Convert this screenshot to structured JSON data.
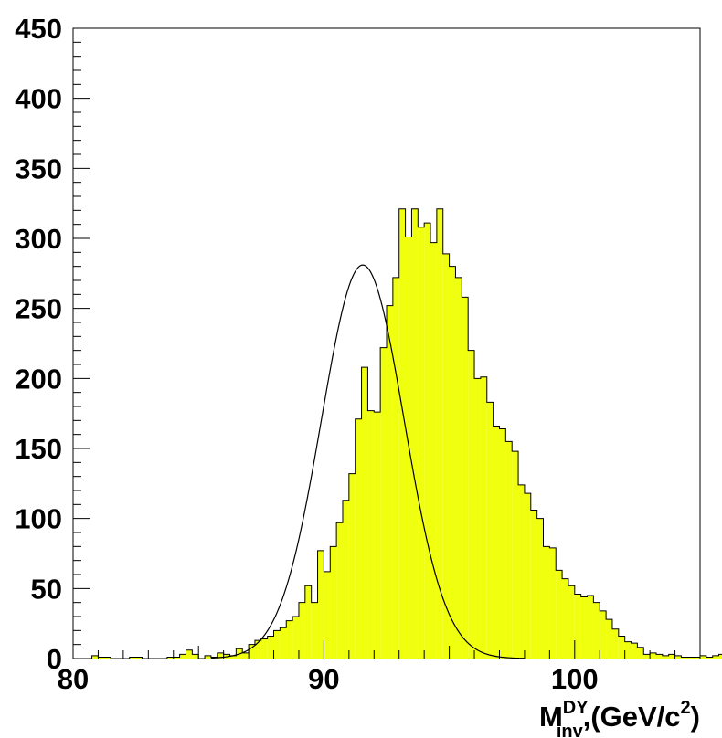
{
  "chart_data": {
    "type": "histogram",
    "title": "",
    "xlabel_main": "M",
    "xlabel_sup": "DY",
    "xlabel_sub": "inv",
    "xlabel_rest": ",(GeV/c",
    "xlabel_sup2": "2",
    "xlabel_close": ")",
    "ylabel": "",
    "xlim": [
      80,
      105
    ],
    "ylim": [
      0,
      450
    ],
    "grid": false,
    "fill_color": "#f0ff0e",
    "x_ticks": [
      80,
      90,
      100
    ],
    "y_ticks": [
      0,
      50,
      100,
      150,
      200,
      250,
      300,
      350,
      400,
      450
    ],
    "bin_width": 0.25,
    "x_start": 80,
    "values": [
      0,
      0,
      0,
      2,
      1,
      1,
      0,
      0,
      0,
      1,
      1,
      0,
      0,
      0,
      0,
      1,
      1,
      3,
      6,
      3,
      0,
      2,
      1,
      4,
      3,
      2,
      7,
      4,
      10,
      13,
      14,
      16,
      20,
      22,
      27,
      30,
      40,
      52,
      40,
      77,
      62,
      80,
      97,
      113,
      132,
      171,
      208,
      177,
      176,
      222,
      252,
      272,
      321,
      301,
      321,
      308,
      311,
      297,
      321,
      289,
      280,
      272,
      258,
      220,
      200,
      201,
      183,
      166,
      164,
      155,
      148,
      124,
      118,
      106,
      100,
      80,
      79,
      63,
      57,
      52,
      46,
      44,
      45,
      40,
      34,
      28,
      21,
      16,
      12,
      11,
      8,
      3,
      4,
      3,
      2,
      3,
      2,
      1,
      1,
      1,
      2,
      1,
      2,
      3,
      2,
      1,
      1,
      1,
      0,
      0,
      0,
      1,
      0,
      1,
      4,
      3,
      0,
      3,
      3,
      1
    ]
  },
  "fit": {
    "type": "gaussian",
    "amplitude": 281,
    "mean": 91.55,
    "sigma": 1.65
  }
}
